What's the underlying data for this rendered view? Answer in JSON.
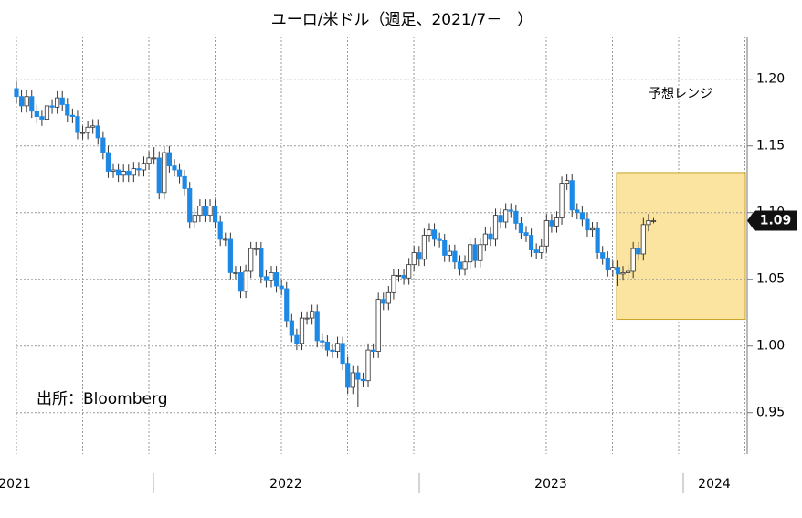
{
  "chart_data": {
    "type": "candlestick",
    "title": "ユーロ/米ドル（週足、2021/7－　）",
    "source": "出所：Bloomberg",
    "x_labels": [
      "2021",
      "2022",
      "2023",
      "2024"
    ],
    "up_color": "#ffffff",
    "down_color": "#1e88e5",
    "ylim": [
      0.919,
      1.232
    ],
    "yticks": [
      0.95,
      {
        "value": 1,
        "label": "1.00"
      },
      1.05,
      {
        "value": 1.1,
        "label": "1.10"
      },
      1.15,
      {
        "value": 1.2,
        "label": "1.20"
      }
    ],
    "grid": true,
    "last_value": {
      "value": 1.094,
      "label": "1.09"
    },
    "forecast_range": {
      "label": "予想レンジ",
      "low": 1.02,
      "high": 1.13,
      "color": "#fbe3a0"
    },
    "open": [
      1.193,
      1.187,
      1.18,
      1.187,
      1.176,
      1.172,
      1.17,
      1.18,
      1.179,
      1.186,
      1.181,
      1.173,
      1.172,
      1.16,
      1.16,
      1.164,
      1.165,
      1.156,
      1.145,
      1.131,
      1.132,
      1.128,
      1.131,
      1.128,
      1.133,
      1.132,
      1.137,
      1.141,
      1.141,
      1.115,
      1.145,
      1.135,
      1.132,
      1.127,
      1.118,
      1.093,
      1.098,
      1.105,
      1.098,
      1.105,
      1.093,
      1.08,
      1.08,
      1.055,
      1.055,
      1.041,
      1.056,
      1.073,
      1.073,
      1.052,
      1.049,
      1.055,
      1.045,
      1.043,
      1.019,
      1.008,
      1.002,
      1.021,
      1.021,
      1.026,
      1.004,
      1.003,
      0.997,
      0.996,
      1.002,
      0.987,
      0.969,
      0.98,
      0.975,
      0.974,
      0.997,
      0.996,
      1.035,
      1.032,
      1.04,
      1.053,
      1.053,
      1.051,
      1.061,
      1.07,
      1.065,
      1.083,
      1.087,
      1.08,
      1.079,
      1.068,
      1.071,
      1.063,
      1.058,
      1.063,
      1.076,
      1.064,
      1.076,
      1.084,
      1.08,
      1.098,
      1.093,
      1.102,
      1.101,
      1.092,
      1.085,
      1.083,
      1.072,
      1.07,
      1.075,
      1.094,
      1.09,
      1.096,
      1.122,
      1.124,
      1.102,
      1.1,
      1.095,
      1.087,
      1.088,
      1.07,
      1.066,
      1.057,
      1.059,
      1.054,
      1.055,
      1.056,
      1.073,
      1.069,
      1.091,
      1.094
    ],
    "high": [
      1.198,
      1.192,
      1.192,
      1.192,
      1.181,
      1.177,
      1.185,
      1.185,
      1.191,
      1.191,
      1.186,
      1.178,
      1.177,
      1.165,
      1.169,
      1.17,
      1.17,
      1.161,
      1.15,
      1.137,
      1.137,
      1.136,
      1.136,
      1.138,
      1.138,
      1.142,
      1.146,
      1.149,
      1.146,
      1.15,
      1.15,
      1.14,
      1.137,
      1.132,
      1.123,
      1.103,
      1.11,
      1.11,
      1.11,
      1.11,
      1.098,
      1.085,
      1.085,
      1.06,
      1.06,
      1.061,
      1.078,
      1.078,
      1.078,
      1.057,
      1.06,
      1.06,
      1.05,
      1.048,
      1.024,
      1.013,
      1.026,
      1.026,
      1.031,
      1.031,
      1.009,
      1.008,
      1.002,
      1.007,
      1.007,
      0.992,
      0.985,
      0.985,
      0.98,
      1.002,
      1.002,
      1.04,
      1.04,
      1.045,
      1.058,
      1.058,
      1.058,
      1.066,
      1.075,
      1.075,
      1.088,
      1.092,
      1.092,
      1.085,
      1.084,
      1.076,
      1.076,
      1.068,
      1.068,
      1.081,
      1.081,
      1.081,
      1.089,
      1.089,
      1.103,
      1.103,
      1.107,
      1.107,
      1.106,
      1.097,
      1.09,
      1.088,
      1.077,
      1.08,
      1.099,
      1.099,
      1.101,
      1.127,
      1.129,
      1.129,
      1.107,
      1.105,
      1.1,
      1.093,
      1.093,
      1.075,
      1.071,
      1.064,
      1.064,
      1.06,
      1.061,
      1.078,
      1.078,
      1.096,
      1.099,
      1.096
    ],
    "low": [
      1.182,
      1.175,
      1.175,
      1.171,
      1.167,
      1.165,
      1.165,
      1.174,
      1.174,
      1.176,
      1.168,
      1.167,
      1.155,
      1.155,
      1.155,
      1.159,
      1.151,
      1.14,
      1.126,
      1.126,
      1.123,
      1.123,
      1.123,
      1.123,
      1.127,
      1.127,
      1.132,
      1.136,
      1.11,
      1.11,
      1.13,
      1.127,
      1.122,
      1.113,
      1.088,
      1.088,
      1.093,
      1.093,
      1.093,
      1.088,
      1.075,
      1.075,
      1.05,
      1.05,
      1.036,
      1.036,
      1.051,
      1.068,
      1.047,
      1.044,
      1.044,
      1.04,
      1.038,
      1.014,
      1.003,
      0.997,
      0.997,
      1.016,
      1.016,
      0.999,
      0.998,
      0.992,
      0.991,
      0.991,
      0.982,
      0.964,
      0.964,
      0.954,
      0.969,
      0.969,
      0.991,
      0.991,
      1.027,
      1.027,
      1.035,
      1.048,
      1.046,
      1.046,
      1.056,
      1.06,
      1.06,
      1.078,
      1.075,
      1.074,
      1.063,
      1.063,
      1.058,
      1.053,
      1.053,
      1.058,
      1.059,
      1.059,
      1.071,
      1.075,
      1.075,
      1.088,
      1.088,
      1.096,
      1.087,
      1.08,
      1.078,
      1.067,
      1.065,
      1.065,
      1.07,
      1.085,
      1.085,
      1.091,
      1.117,
      1.097,
      1.095,
      1.09,
      1.082,
      1.082,
      1.065,
      1.061,
      1.052,
      1.052,
      1.045,
      1.049,
      1.05,
      1.051,
      1.064,
      1.064,
      1.086,
      1.092
    ],
    "close": [
      1.187,
      1.18,
      1.187,
      1.176,
      1.172,
      1.17,
      1.18,
      1.179,
      1.186,
      1.181,
      1.173,
      1.172,
      1.16,
      1.16,
      1.164,
      1.165,
      1.156,
      1.145,
      1.131,
      1.132,
      1.128,
      1.131,
      1.128,
      1.133,
      1.132,
      1.137,
      1.141,
      1.141,
      1.115,
      1.145,
      1.135,
      1.132,
      1.127,
      1.118,
      1.093,
      1.098,
      1.105,
      1.098,
      1.105,
      1.093,
      1.08,
      1.08,
      1.055,
      1.055,
      1.041,
      1.056,
      1.073,
      1.073,
      1.052,
      1.049,
      1.055,
      1.045,
      1.043,
      1.019,
      1.008,
      1.002,
      1.021,
      1.021,
      1.026,
      1.004,
      1.003,
      0.997,
      0.996,
      1.002,
      0.987,
      0.969,
      0.98,
      0.975,
      0.974,
      0.997,
      0.996,
      1.035,
      1.032,
      1.04,
      1.053,
      1.053,
      1.051,
      1.061,
      1.07,
      1.065,
      1.083,
      1.087,
      1.08,
      1.079,
      1.068,
      1.071,
      1.063,
      1.058,
      1.063,
      1.076,
      1.064,
      1.076,
      1.084,
      1.08,
      1.098,
      1.093,
      1.102,
      1.101,
      1.092,
      1.085,
      1.083,
      1.072,
      1.07,
      1.075,
      1.094,
      1.09,
      1.096,
      1.122,
      1.124,
      1.102,
      1.1,
      1.095,
      1.087,
      1.088,
      1.07,
      1.066,
      1.057,
      1.059,
      1.054,
      1.055,
      1.056,
      1.073,
      1.069,
      1.091,
      1.094,
      1.094
    ]
  }
}
